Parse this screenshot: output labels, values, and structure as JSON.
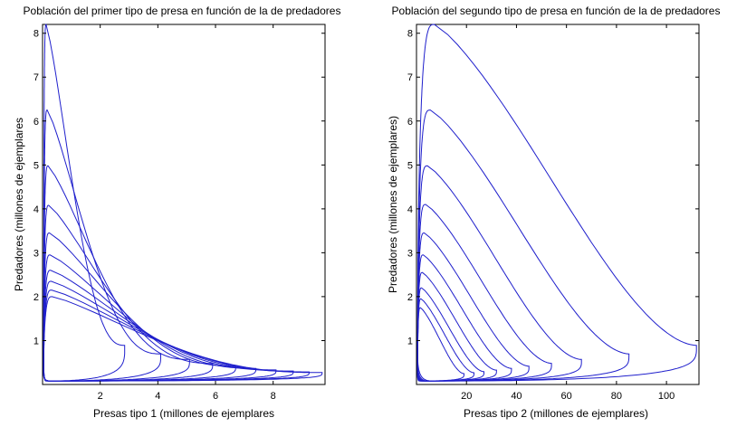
{
  "chart_data": [
    {
      "type": "line",
      "title": "Población del primer tipo de presa en  función de la de predadores",
      "xlabel": "Presas tipo 1 (millones de ejemplares",
      "ylabel": "Predadores (millones de ejemplares",
      "xlim": [
        0,
        9.8
      ],
      "ylim": [
        0,
        8.2
      ],
      "xticks": [
        "2",
        "4",
        "6",
        "8"
      ],
      "yticks": [
        "1",
        "2",
        "3",
        "4",
        "5",
        "6",
        "7",
        "8"
      ],
      "grid": false,
      "color": "#1f1fcc",
      "orbits": [
        {
          "x_max": 2.85,
          "y_max": 8.2
        },
        {
          "x_max": 4.1,
          "y_max": 6.25
        },
        {
          "x_max": 5.1,
          "y_max": 4.98
        },
        {
          "x_max": 5.9,
          "y_max": 4.08
        },
        {
          "x_max": 6.7,
          "y_max": 3.45
        },
        {
          "x_max": 7.4,
          "y_max": 2.95
        },
        {
          "x_max": 8.1,
          "y_max": 2.6
        },
        {
          "x_max": 8.7,
          "y_max": 2.35
        },
        {
          "x_max": 9.25,
          "y_max": 2.15
        },
        {
          "x_max": 9.7,
          "y_max": 2.0
        }
      ]
    },
    {
      "type": "line",
      "title": "Población del segundo tipo de presa en función de la de predadores",
      "xlabel": "Presas tipo 2 (millones de ejemplares)",
      "ylabel": "Predadores (millones de ejemplares)",
      "xlim": [
        0,
        113
      ],
      "ylim": [
        0,
        8.2
      ],
      "xticks": [
        "20",
        "40",
        "60",
        "80",
        "100"
      ],
      "yticks": [
        "1",
        "2",
        "3",
        "4",
        "5",
        "6",
        "7",
        "8"
      ],
      "grid": false,
      "color": "#1f1fcc",
      "orbits": [
        {
          "x_max": 112,
          "y_max": 8.2
        },
        {
          "x_max": 85,
          "y_max": 6.25
        },
        {
          "x_max": 66,
          "y_max": 4.98
        },
        {
          "x_max": 54,
          "y_max": 4.1
        },
        {
          "x_max": 45,
          "y_max": 3.45
        },
        {
          "x_max": 38,
          "y_max": 2.95
        },
        {
          "x_max": 32,
          "y_max": 2.55
        },
        {
          "x_max": 27,
          "y_max": 2.2
        },
        {
          "x_max": 23,
          "y_max": 1.95
        },
        {
          "x_max": 19,
          "y_max": 1.75
        }
      ]
    }
  ]
}
